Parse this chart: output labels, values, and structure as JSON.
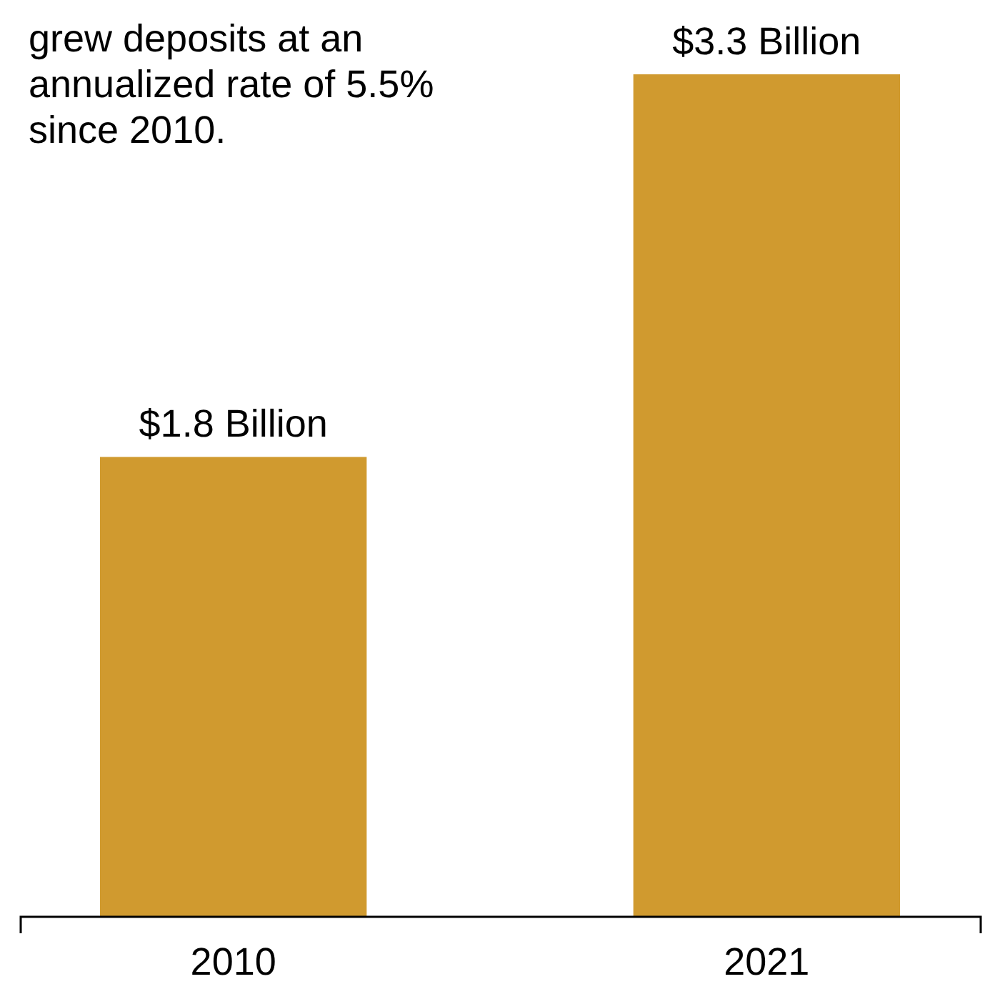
{
  "chart_data": {
    "type": "bar",
    "categories": [
      "2010",
      "2021"
    ],
    "values": [
      1.8,
      3.3
    ],
    "value_labels": [
      "$1.8 Billion",
      "$3.3 Billion"
    ],
    "color": "#d09a2f",
    "annotations": [
      "grew deposits at an annualized rate of 5.5% since 2010."
    ]
  }
}
